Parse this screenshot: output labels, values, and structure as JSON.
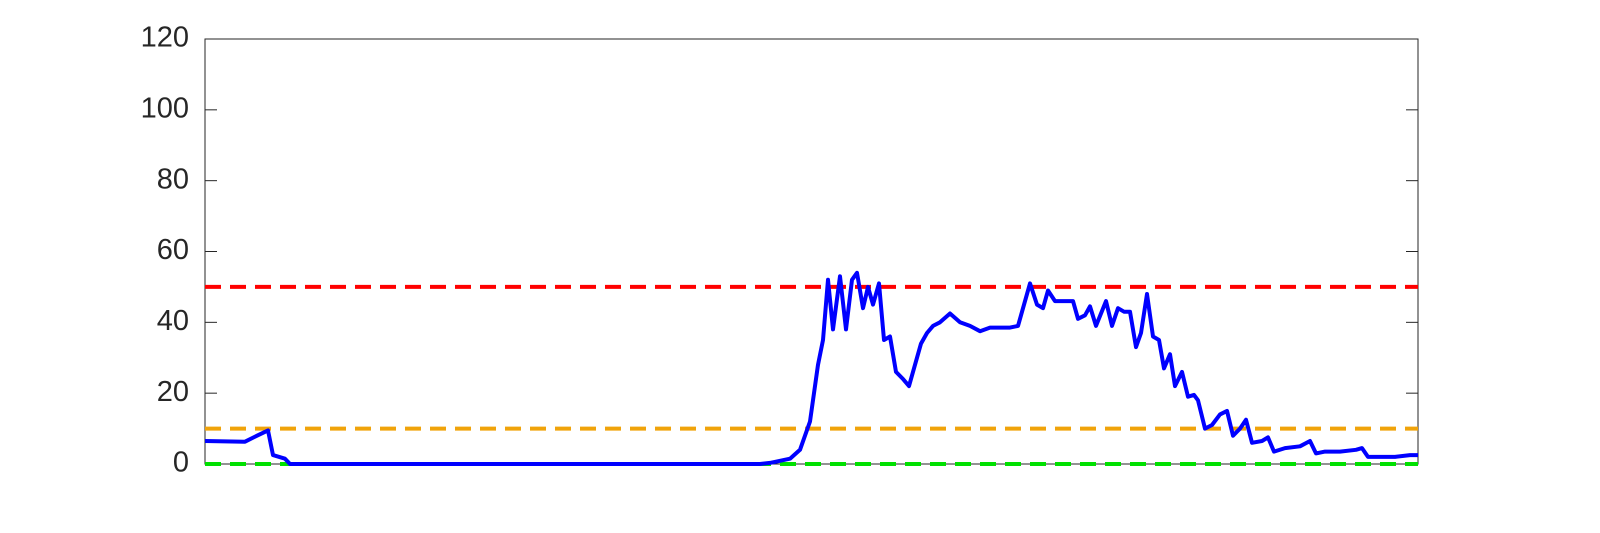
{
  "chart_data": {
    "type": "line",
    "x": [
      0,
      40,
      52,
      63,
      68,
      80,
      85,
      555,
      565,
      585,
      595,
      605,
      613,
      618,
      623,
      628,
      635,
      641,
      647,
      652,
      658,
      663,
      668,
      674,
      679,
      685,
      691,
      698,
      704,
      710,
      716,
      722,
      728,
      735,
      745,
      755,
      765,
      775,
      785,
      795,
      805,
      813,
      825,
      832,
      838,
      843,
      850,
      860,
      868,
      873,
      880,
      885,
      891,
      901,
      907,
      913,
      919,
      925,
      931,
      936,
      942,
      948,
      954,
      959,
      965,
      970,
      977,
      983,
      989,
      993,
      1000,
      1007,
      1015,
      1022,
      1028,
      1035,
      1041,
      1047,
      1057,
      1063,
      1069,
      1080,
      1095,
      1105,
      1111,
      1120,
      1135,
      1151,
      1157,
      1163,
      1175,
      1190,
      1205,
      1213
    ],
    "series": [
      {
        "color": "#0000ff",
        "values": [
          6.5,
          6.3,
          8,
          9.5,
          2.5,
          1.5,
          0,
          0,
          0.3,
          1.5,
          4,
          12,
          28,
          35,
          52,
          38,
          53,
          38,
          52,
          54,
          44,
          50,
          45,
          51,
          35,
          36,
          26,
          24,
          22,
          28,
          34,
          37,
          39,
          40,
          42.5,
          40,
          39,
          37.5,
          38.5,
          38.5,
          38.5,
          39,
          51,
          45,
          44,
          49,
          46,
          46,
          46,
          41,
          42,
          44.5,
          39,
          46,
          39,
          44,
          43,
          43,
          33,
          37,
          48,
          36,
          35,
          27,
          31,
          22,
          26,
          19,
          19.5,
          18,
          10,
          11,
          14,
          15,
          8,
          10,
          12.5,
          6,
          6.5,
          7.5,
          3.5,
          4.5,
          5,
          6.5,
          3,
          3.5,
          3.5,
          4,
          4.5,
          2,
          2,
          2,
          2.5,
          2.5
        ]
      }
    ],
    "hlines": [
      {
        "value": 50,
        "color": "#ff0000"
      },
      {
        "value": 10,
        "color": "#f0a30a"
      },
      {
        "value": 0,
        "color": "#00e000"
      }
    ],
    "xlim": [
      0,
      1213
    ],
    "ylim": [
      0,
      120
    ],
    "yticks": [
      0,
      20,
      40,
      60,
      80,
      100,
      120
    ]
  }
}
